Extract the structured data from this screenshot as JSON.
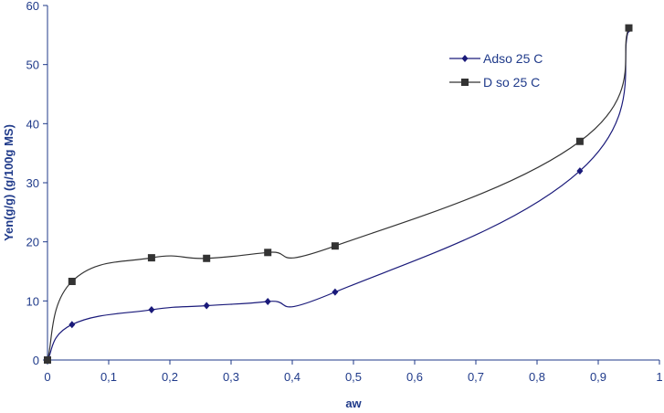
{
  "chart_data": {
    "type": "line",
    "title": "",
    "xlabel": "aw",
    "ylabel": "Yen(g/g) (g/100g MS)",
    "xlim": [
      0,
      1
    ],
    "ylim": [
      0,
      60
    ],
    "xticks": [
      0,
      0.1,
      0.2,
      0.3,
      0.4,
      0.5,
      0.6,
      0.7,
      0.8,
      0.9,
      1
    ],
    "yticks": [
      0,
      10,
      20,
      30,
      40,
      50,
      60
    ],
    "xtick_labels": [
      "0",
      "0,1",
      "0,2",
      "0,3",
      "0,4",
      "0,5",
      "0,6",
      "0,7",
      "0,8",
      "0,9",
      "1"
    ],
    "ytick_labels": [
      "0",
      "10",
      "20",
      "30",
      "40",
      "50",
      "60"
    ],
    "grid": false,
    "legend_position": "top-right",
    "series": [
      {
        "name": "Adso 25  C",
        "marker": "diamond",
        "color": "#1a1a7a",
        "x": [
          0,
          0.04,
          0.17,
          0.26,
          0.36,
          0.47,
          0.87,
          0.95
        ],
        "y": [
          0,
          6,
          8.5,
          9.2,
          9.9,
          11.5,
          32,
          56
        ]
      },
      {
        "name": "D  so 25  C",
        "marker": "square",
        "color": "#333333",
        "x": [
          0,
          0.04,
          0.17,
          0.26,
          0.36,
          0.47,
          0.87,
          0.95
        ],
        "y": [
          0,
          13.3,
          17.3,
          17.2,
          18.2,
          19.3,
          37,
          56.2
        ]
      }
    ]
  }
}
